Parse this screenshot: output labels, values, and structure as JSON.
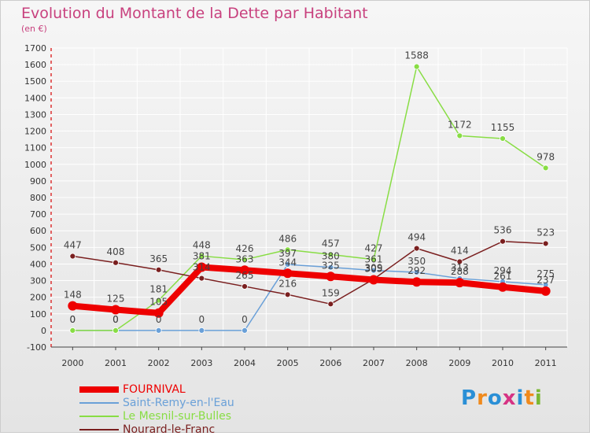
{
  "title": "Evolution du Montant de la Dette par Habitant",
  "subtitle": "(en €)",
  "logo_text": "Proxiti",
  "chart_data": {
    "type": "line",
    "x": [
      2000,
      2001,
      2002,
      2003,
      2004,
      2005,
      2006,
      2007,
      2008,
      2009,
      2010,
      2011
    ],
    "ylim": [
      -100,
      1700
    ],
    "yticks": [
      -100,
      0,
      100,
      200,
      300,
      400,
      500,
      600,
      700,
      800,
      900,
      1000,
      1100,
      1200,
      1300,
      1400,
      1500,
      1600,
      1700
    ],
    "grid": true,
    "legend_position": "bottom-left",
    "series": [
      {
        "name": "FOURNIVAL",
        "color": "#ee0000",
        "values": [
          148,
          125,
          105,
          381,
          363,
          344,
          325,
          305,
          292,
          288,
          261,
          237
        ]
      },
      {
        "name": "Saint-Remy-en-l'Eau",
        "color": "#6aa0d8",
        "values": [
          0,
          0,
          0,
          0,
          0,
          397,
          380,
          361,
          350,
          313,
          294,
          275
        ]
      },
      {
        "name": "Le Mesnil-sur-Bulles",
        "color": "#88dd44",
        "values": [
          0,
          0,
          181,
          448,
          426,
          486,
          457,
          427,
          1588,
          1172,
          1155,
          978
        ]
      },
      {
        "name": "Nourard-le-Franc",
        "color": "#7a1f1f",
        "values": [
          447,
          408,
          365,
          314,
          265,
          216,
          159,
          309,
          494,
          414,
          536,
          523
        ]
      }
    ]
  }
}
